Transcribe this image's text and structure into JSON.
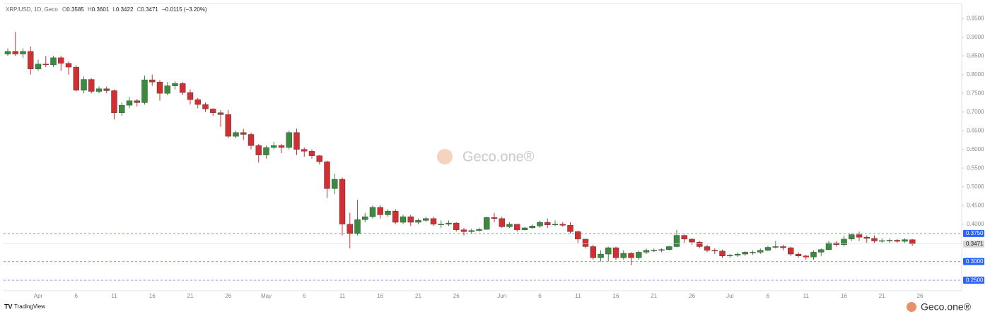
{
  "chart_data": {
    "type": "candlestick",
    "symbol": "XRP/USD, 1D, Geco",
    "ohlc_prefixes": [
      "O",
      "H",
      "L",
      "C"
    ],
    "change_label": "−0.0115 (−3.20%)",
    "watermark": "Geco.one®",
    "brand": "Geco.one®",
    "footer": "TradingView",
    "categories": [
      null,
      null,
      null,
      null,
      "Apr",
      null,
      null,
      null,
      null,
      "6",
      null,
      null,
      null,
      null,
      "11",
      null,
      null,
      null,
      null,
      "16",
      null,
      null,
      null,
      null,
      "21",
      null,
      null,
      null,
      null,
      "26",
      null,
      null,
      null,
      null,
      "May",
      null,
      null,
      null,
      null,
      "6",
      null,
      null,
      null,
      null,
      "11",
      null,
      null,
      null,
      null,
      "16",
      null,
      null,
      null,
      null,
      "21",
      null,
      null,
      null,
      null,
      "26",
      null,
      null,
      null,
      null,
      null,
      "Jun",
      null,
      null,
      null,
      null,
      "6",
      null,
      null,
      null,
      null,
      "11",
      null,
      null,
      null,
      null,
      "16",
      null,
      null,
      null,
      null,
      "21",
      null,
      null,
      null,
      null,
      "26",
      null,
      null,
      null,
      null,
      "Jul",
      null,
      null,
      null,
      null,
      "6",
      null,
      null,
      null,
      null,
      "11",
      null,
      null,
      null,
      null,
      "16",
      null,
      null,
      null,
      null,
      "21",
      null,
      null,
      null,
      null,
      "26"
    ],
    "open": [
      0.855,
      0.862,
      0.855,
      0.862,
      0.815,
      0.828,
      0.826,
      0.845,
      0.83,
      0.82,
      0.758,
      0.787,
      0.755,
      0.762,
      0.757,
      0.698,
      0.718,
      0.73,
      0.725,
      0.786,
      0.78,
      0.75,
      0.77,
      0.776,
      0.752,
      0.733,
      0.72,
      0.708,
      0.698,
      0.693,
      0.635,
      0.645,
      0.64,
      0.61,
      0.585,
      0.605,
      0.61,
      0.605,
      0.645,
      0.6,
      0.595,
      0.583,
      0.567,
      0.495,
      0.52,
      0.4,
      0.375,
      0.412,
      0.42,
      0.445,
      0.425,
      0.435,
      0.405,
      0.42,
      0.405,
      0.41,
      0.415,
      0.4,
      0.4,
      0.403,
      0.385,
      0.38,
      0.383,
      0.386,
      0.418,
      0.415,
      0.393,
      0.4,
      0.385,
      0.39,
      0.395,
      0.405,
      0.398,
      0.4,
      0.397,
      0.38,
      0.36,
      0.34,
      0.31,
      0.32,
      0.337,
      0.31,
      0.322,
      0.31,
      0.325,
      0.33,
      0.33,
      0.332,
      0.34,
      0.37,
      0.36,
      0.352,
      0.34,
      0.33,
      0.328,
      0.315,
      0.317,
      0.32,
      0.325,
      0.325,
      0.33,
      0.338,
      0.34,
      0.337,
      0.32,
      0.315,
      0.312,
      0.325,
      0.332,
      0.35,
      0.345,
      0.36,
      0.372,
      0.365,
      0.362,
      0.355,
      0.356,
      0.357,
      0.354,
      0.3585,
      null
    ],
    "high": [
      0.87,
      0.914,
      0.87,
      0.875,
      0.84,
      0.85,
      0.85,
      0.85,
      0.835,
      0.825,
      0.795,
      0.79,
      0.768,
      0.768,
      0.76,
      0.725,
      0.74,
      0.735,
      0.797,
      0.8,
      0.785,
      0.78,
      0.782,
      0.78,
      0.76,
      0.738,
      0.725,
      0.71,
      0.705,
      0.705,
      0.65,
      0.655,
      0.645,
      0.615,
      0.61,
      0.62,
      0.615,
      0.65,
      0.655,
      0.605,
      0.6,
      0.585,
      0.57,
      0.535,
      0.525,
      0.43,
      0.465,
      0.43,
      0.45,
      0.45,
      0.44,
      0.44,
      0.425,
      0.425,
      0.415,
      0.42,
      0.42,
      0.41,
      0.41,
      0.405,
      0.39,
      0.388,
      0.39,
      0.42,
      0.43,
      0.42,
      0.405,
      0.4,
      0.392,
      0.4,
      0.41,
      0.415,
      0.41,
      0.405,
      0.405,
      0.383,
      0.36,
      0.345,
      0.33,
      0.34,
      0.34,
      0.33,
      0.325,
      0.33,
      0.335,
      0.335,
      0.335,
      0.342,
      0.385,
      0.372,
      0.362,
      0.355,
      0.345,
      0.335,
      0.332,
      0.32,
      0.325,
      0.328,
      0.33,
      0.335,
      0.342,
      0.355,
      0.345,
      0.34,
      0.325,
      0.318,
      0.33,
      0.335,
      0.355,
      0.355,
      0.37,
      0.375,
      0.38,
      0.37,
      0.37,
      0.362,
      0.362,
      0.36,
      0.362,
      0.3601,
      null
    ],
    "low": [
      0.85,
      0.85,
      0.845,
      0.8,
      0.81,
      0.82,
      0.82,
      0.81,
      0.8,
      0.755,
      0.75,
      0.75,
      0.75,
      0.75,
      0.68,
      0.69,
      0.71,
      0.715,
      0.72,
      0.77,
      0.73,
      0.745,
      0.76,
      0.745,
      0.72,
      0.71,
      0.7,
      0.69,
      0.66,
      0.63,
      0.63,
      0.625,
      0.6,
      0.565,
      0.575,
      0.6,
      0.59,
      0.6,
      0.585,
      0.58,
      0.575,
      0.56,
      0.47,
      0.48,
      0.37,
      0.335,
      0.37,
      0.405,
      0.415,
      0.415,
      0.42,
      0.4,
      0.4,
      0.395,
      0.4,
      0.405,
      0.395,
      0.39,
      0.395,
      0.38,
      0.37,
      0.375,
      0.38,
      0.385,
      0.405,
      0.39,
      0.39,
      0.38,
      0.383,
      0.388,
      0.39,
      0.39,
      0.395,
      0.393,
      0.375,
      0.35,
      0.335,
      0.305,
      0.3,
      0.3,
      0.305,
      0.305,
      0.29,
      0.305,
      0.32,
      0.325,
      0.325,
      0.33,
      0.338,
      0.35,
      0.345,
      0.335,
      0.325,
      0.32,
      0.31,
      0.31,
      0.312,
      0.315,
      0.318,
      0.32,
      0.328,
      0.335,
      0.33,
      0.315,
      0.31,
      0.305,
      0.305,
      0.315,
      0.33,
      0.34,
      0.34,
      0.355,
      0.355,
      0.35,
      0.35,
      0.35,
      0.35,
      0.35,
      0.35,
      0.3422,
      null
    ],
    "close": [
      0.862,
      0.855,
      0.862,
      0.815,
      0.828,
      0.826,
      0.845,
      0.83,
      0.82,
      0.758,
      0.787,
      0.755,
      0.762,
      0.757,
      0.698,
      0.718,
      0.73,
      0.725,
      0.786,
      0.78,
      0.75,
      0.77,
      0.776,
      0.752,
      0.733,
      0.72,
      0.708,
      0.698,
      0.693,
      0.635,
      0.645,
      0.64,
      0.61,
      0.585,
      0.605,
      0.61,
      0.605,
      0.645,
      0.6,
      0.595,
      0.583,
      0.567,
      0.495,
      0.52,
      0.4,
      0.375,
      0.412,
      0.42,
      0.445,
      0.425,
      0.435,
      0.405,
      0.42,
      0.405,
      0.41,
      0.415,
      0.4,
      0.4,
      0.403,
      0.385,
      0.38,
      0.383,
      0.386,
      0.418,
      0.415,
      0.393,
      0.4,
      0.385,
      0.39,
      0.395,
      0.405,
      0.398,
      0.4,
      0.397,
      0.38,
      0.36,
      0.34,
      0.31,
      0.32,
      0.337,
      0.31,
      0.322,
      0.31,
      0.325,
      0.33,
      0.33,
      0.332,
      0.34,
      0.37,
      0.36,
      0.352,
      0.34,
      0.33,
      0.328,
      0.315,
      0.317,
      0.32,
      0.325,
      0.325,
      0.33,
      0.338,
      0.34,
      0.337,
      0.32,
      0.315,
      0.312,
      0.325,
      0.332,
      0.35,
      0.345,
      0.36,
      0.372,
      0.365,
      0.362,
      0.355,
      0.356,
      0.357,
      0.354,
      0.3585,
      0.3471,
      null
    ],
    "up_color": "#3b8a3f",
    "down_color": "#cf3033",
    "ylim": [
      0.222,
      0.99
    ],
    "yticks": [
      {
        "value": 0.95,
        "label": "0.9500"
      },
      {
        "value": 0.9,
        "label": "0.9000"
      },
      {
        "value": 0.85,
        "label": "0.8500"
      },
      {
        "value": 0.8,
        "label": "0.8000"
      },
      {
        "value": 0.75,
        "label": "0.7500"
      },
      {
        "value": 0.7,
        "label": "0.7000"
      },
      {
        "value": 0.65,
        "label": "0.6500"
      },
      {
        "value": 0.6,
        "label": "0.6000"
      },
      {
        "value": 0.55,
        "label": "0.5500"
      },
      {
        "value": 0.5,
        "label": "0.5000"
      },
      {
        "value": 0.45,
        "label": "0.4500"
      },
      {
        "value": 0.4,
        "label": "0.4000"
      }
    ],
    "levels": [
      {
        "value": 0.375,
        "label": "0.3750"
      },
      {
        "value": 0.3,
        "label": "0.3000"
      },
      {
        "value": 0.25,
        "label": "0.2500"
      }
    ],
    "level_color": "#2962ff",
    "grid": false
  }
}
